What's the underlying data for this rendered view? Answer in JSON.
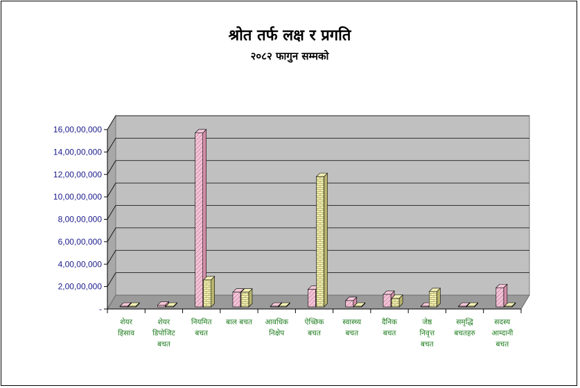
{
  "chart_data": {
    "type": "bar",
    "title": "श्रोत तर्फ लक्ष र प्रगति",
    "subtitle": "२०८२ फागुन सम्मको",
    "categories": [
      [
        "शेयर",
        "हिसाव"
      ],
      [
        "शेयर",
        "डिपोजिट",
        "बचत"
      ],
      [
        "नियमित",
        "बचत"
      ],
      [
        "बाल बचत"
      ],
      [
        "आवधिक",
        "निक्षेप"
      ],
      [
        "ऐच्छिक",
        "बचत"
      ],
      [
        "स्वास्थ्य",
        "बचत"
      ],
      [
        "दैनिक",
        "बचत"
      ],
      [
        "जेष्ठ",
        "निवृत्त",
        "बचत"
      ],
      [
        "समृद्धि",
        "बचतहरु"
      ],
      [
        "सदस्य",
        "आम्दानी",
        "बचत"
      ]
    ],
    "series": [
      {
        "values": [
          0,
          3500000,
          157000000,
          15000000,
          0,
          17500000,
          7500000,
          13000000,
          0,
          1000000,
          19000000
        ]
      },
      {
        "values": [
          0,
          1000000,
          26000000,
          15000000,
          0,
          118000000,
          1000000,
          9500000,
          15500000,
          0,
          0
        ]
      }
    ],
    "ylim": [
      0,
      160000000
    ],
    "yticks": [
      "-",
      "2,00,00,000",
      "4,00,00,000",
      "6,00,00,000",
      "8,00,00,000",
      "10,00,00,000",
      "12,00,00,000",
      "14,00,00,000",
      "16,00,00,000"
    ],
    "grid": true,
    "colors": {
      "wall": "#c0c0c0",
      "floor": "#9a9a9a",
      "series1": "#f4c6d8",
      "series1_dark": "#d28ea8",
      "series2": "#f2f0b4",
      "series2_dark": "#b8b46e",
      "ytick": "#1a1a8c",
      "xtick": "#1a7a1a"
    }
  }
}
